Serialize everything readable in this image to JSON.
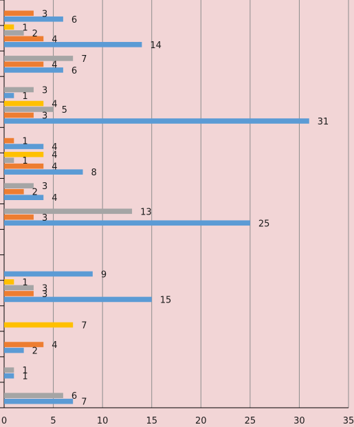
{
  "chart_data": {
    "type": "bar",
    "orientation": "horizontal",
    "title": "",
    "xlabel": "",
    "ylabel": "",
    "xlim": [
      0,
      35
    ],
    "x_ticks": [
      0,
      5,
      10,
      15,
      20,
      25,
      30,
      35
    ],
    "grid": "vertical",
    "legend": "none",
    "colors": {
      "blue": "#5b9bd5",
      "orange": "#ed7d31",
      "gray": "#a5a5a5",
      "yellow": "#ffc000",
      "background": "#f2d5d6",
      "gridline": "#8c8c8c"
    },
    "groups": [
      {
        "bars": [
          {
            "value": 3,
            "color": "orange"
          },
          {
            "value": 6,
            "color": "blue"
          }
        ]
      },
      {
        "bars": [
          {
            "value": 1,
            "color": "yellow"
          },
          {
            "value": 2,
            "color": "gray"
          },
          {
            "value": 4,
            "color": "orange"
          },
          {
            "value": 14,
            "color": "blue"
          }
        ]
      },
      {
        "bars": [
          {
            "value": 7,
            "color": "gray"
          },
          {
            "value": 4,
            "color": "orange"
          },
          {
            "value": 6,
            "color": "blue"
          }
        ]
      },
      {
        "bars": [
          {
            "value": 3,
            "color": "gray"
          },
          {
            "value": 1,
            "color": "blue"
          }
        ]
      },
      {
        "bars": [
          {
            "value": 4,
            "color": "yellow"
          },
          {
            "value": 5,
            "color": "gray"
          },
          {
            "value": 3,
            "color": "orange"
          },
          {
            "value": 31,
            "color": "blue"
          }
        ]
      },
      {
        "bars": [
          {
            "value": 1,
            "color": "orange"
          },
          {
            "value": 4,
            "color": "blue"
          }
        ]
      },
      {
        "bars": [
          {
            "value": 4,
            "color": "yellow"
          },
          {
            "value": 1,
            "color": "gray"
          },
          {
            "value": 4,
            "color": "orange"
          },
          {
            "value": 8,
            "color": "blue"
          }
        ]
      },
      {
        "bars": [
          {
            "value": 3,
            "color": "gray"
          },
          {
            "value": 2,
            "color": "orange"
          },
          {
            "value": 4,
            "color": "blue"
          }
        ]
      },
      {
        "bars": [
          {
            "value": 13,
            "color": "gray"
          },
          {
            "value": 3,
            "color": "orange"
          },
          {
            "value": 25,
            "color": "blue"
          }
        ]
      },
      {
        "bars": []
      },
      {
        "bars": [
          {
            "value": 9,
            "color": "blue"
          }
        ]
      },
      {
        "bars": [
          {
            "value": 1,
            "color": "yellow"
          },
          {
            "value": 3,
            "color": "gray"
          },
          {
            "value": 3,
            "color": "orange"
          },
          {
            "value": 15,
            "color": "blue"
          }
        ]
      },
      {
        "bars": [
          {
            "value": 7,
            "color": "yellow"
          }
        ]
      },
      {
        "bars": [
          {
            "value": 4,
            "color": "orange"
          },
          {
            "value": 2,
            "color": "blue"
          }
        ]
      },
      {
        "bars": [
          {
            "value": 1,
            "color": "gray"
          },
          {
            "value": 1,
            "color": "blue"
          }
        ]
      },
      {
        "bars": [
          {
            "value": 6,
            "color": "gray"
          },
          {
            "value": 7,
            "color": "blue"
          }
        ]
      }
    ]
  }
}
